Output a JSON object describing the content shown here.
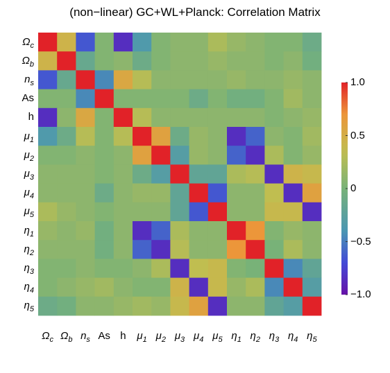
{
  "chart_data": {
    "type": "heatmap",
    "title": "(non−linear) GC+WL+Planck: Correlation Matrix",
    "labels": [
      "Ωc",
      "Ωb",
      "ns",
      "As",
      "h",
      "μ1",
      "μ2",
      "μ3",
      "μ4",
      "μ5",
      "η1",
      "η2",
      "η3",
      "η4",
      "η5"
    ],
    "colorbar": {
      "range": [
        -1.0,
        1.0
      ],
      "ticks": [
        1.0,
        0.5,
        0,
        -0.5,
        -1.0
      ],
      "tick_labels": [
        "1.0",
        "0.5",
        "0",
        "−0.5",
        "−1.0"
      ]
    },
    "matrix": [
      [
        1.0,
        0.45,
        -0.65,
        0.05,
        -0.85,
        -0.35,
        0.05,
        0.1,
        0.1,
        0.25,
        0.15,
        0.1,
        0.05,
        0.05,
        -0.1
      ],
      [
        0.45,
        1.0,
        -0.15,
        0.05,
        0.1,
        -0.1,
        0.05,
        0.1,
        0.1,
        0.15,
        0.1,
        0.1,
        0.05,
        0.1,
        -0.05
      ],
      [
        -0.65,
        -0.15,
        1.0,
        -0.45,
        0.55,
        0.3,
        0.1,
        0.1,
        0.1,
        0.1,
        0.15,
        0.1,
        0.1,
        0.15,
        0.1
      ],
      [
        0.05,
        0.05,
        -0.45,
        1.0,
        0.05,
        0.05,
        0.05,
        0.05,
        -0.1,
        0.05,
        -0.05,
        -0.05,
        0.05,
        0.2,
        0.1
      ],
      [
        -0.85,
        0.1,
        0.55,
        0.05,
        1.0,
        0.3,
        0.1,
        0.1,
        0.1,
        0.1,
        0.1,
        0.1,
        0.05,
        0.1,
        0.15
      ],
      [
        -0.35,
        -0.1,
        0.3,
        0.05,
        0.3,
        1.0,
        0.6,
        -0.1,
        0.15,
        0.1,
        -0.85,
        -0.6,
        0.1,
        0.05,
        0.2
      ],
      [
        0.05,
        0.05,
        0.1,
        0.05,
        0.1,
        0.6,
        1.0,
        -0.3,
        0.15,
        0.1,
        -0.6,
        -0.85,
        0.25,
        0.05,
        0.15
      ],
      [
        0.1,
        0.1,
        0.1,
        0.05,
        0.1,
        -0.1,
        -0.3,
        1.0,
        -0.2,
        -0.2,
        0.25,
        0.3,
        -0.85,
        0.45,
        0.4
      ],
      [
        0.1,
        0.1,
        0.1,
        -0.1,
        0.1,
        0.15,
        0.15,
        -0.2,
        1.0,
        -0.65,
        0.1,
        0.1,
        0.35,
        -0.85,
        0.6
      ],
      [
        0.25,
        0.15,
        0.1,
        0.05,
        0.1,
        0.1,
        0.1,
        -0.2,
        -0.65,
        1.0,
        0.1,
        0.1,
        0.4,
        0.4,
        -0.85
      ],
      [
        0.15,
        0.1,
        0.15,
        -0.05,
        0.1,
        -0.85,
        -0.6,
        0.25,
        0.1,
        0.1,
        1.0,
        0.7,
        0.05,
        0.15,
        0.1
      ],
      [
        0.1,
        0.1,
        0.1,
        -0.05,
        0.1,
        -0.6,
        -0.85,
        0.3,
        0.1,
        0.1,
        0.7,
        1.0,
        0.0,
        0.25,
        0.1
      ],
      [
        0.05,
        0.05,
        0.1,
        0.05,
        0.05,
        0.1,
        0.25,
        -0.85,
        0.35,
        0.4,
        0.05,
        0.0,
        1.0,
        -0.45,
        -0.2
      ],
      [
        0.05,
        0.1,
        0.15,
        0.2,
        0.1,
        0.05,
        0.05,
        0.45,
        -0.85,
        0.4,
        0.15,
        0.25,
        -0.45,
        1.0,
        -0.3
      ],
      [
        -0.1,
        -0.05,
        0.1,
        0.1,
        0.15,
        0.2,
        0.15,
        0.4,
        0.6,
        -0.85,
        0.1,
        0.1,
        -0.2,
        -0.3,
        1.0
      ]
    ]
  }
}
